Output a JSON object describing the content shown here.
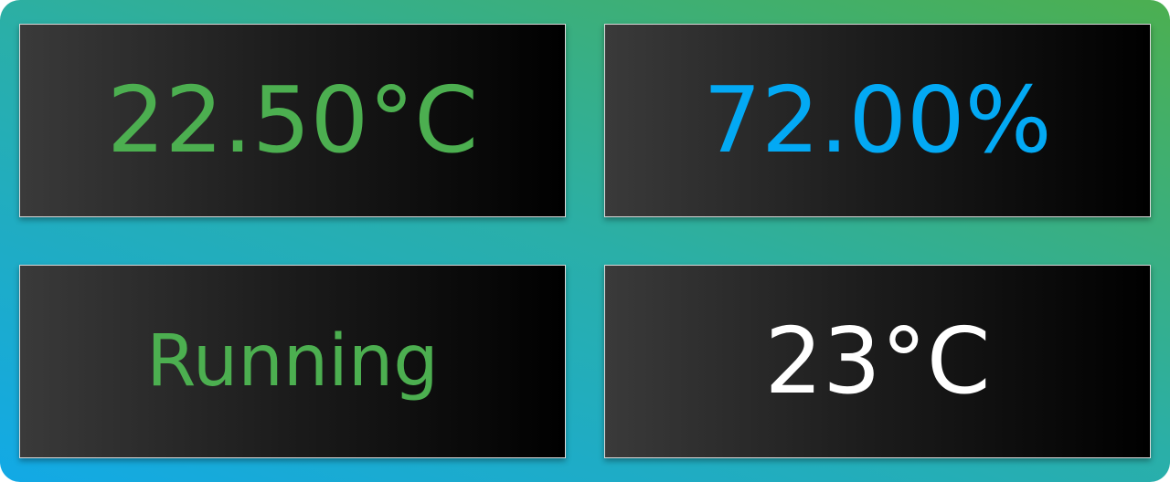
{
  "tiles": {
    "temperature": {
      "value": "22.50°C",
      "color": "#4caf50"
    },
    "humidity": {
      "value": "72.00%",
      "color": "#03a9f4"
    },
    "status": {
      "value": "Running",
      "color": "#4caf50"
    },
    "setpoint": {
      "value": "23°C",
      "color": "#ffffff"
    }
  },
  "colors": {
    "gradient_start": "#12a9e6",
    "gradient_end": "#4caf50",
    "tile_light": "#3a3a3a",
    "tile_dark": "#000000"
  }
}
